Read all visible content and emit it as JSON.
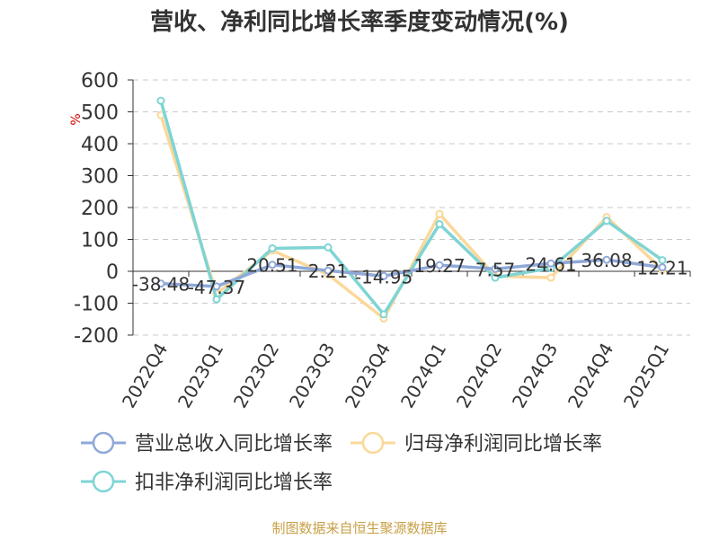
{
  "chart_data": {
    "type": "line",
    "title": "营收、净利同比增长率季度变动情况(%)",
    "ylabel": "%",
    "xlabel": "",
    "categories": [
      "2022Q4",
      "2023Q1",
      "2023Q2",
      "2023Q3",
      "2023Q4",
      "2024Q1",
      "2024Q2",
      "2024Q3",
      "2024Q4",
      "2025Q1"
    ],
    "ylim": [
      -200,
      600
    ],
    "yticks": [
      "600",
      "500",
      "400",
      "300",
      "200",
      "100",
      "0",
      "-100",
      "-200"
    ],
    "ytick_values": [
      600,
      500,
      400,
      300,
      200,
      100,
      0,
      -100,
      -200
    ],
    "grid": true,
    "legend_position": "bottom",
    "series": [
      {
        "name": "营业总收入同比增长率",
        "color": "#8fa8d8",
        "values": [
          -38.48,
          -47.37,
          20.51,
          2.21,
          -14.95,
          19.27,
          7.57,
          24.61,
          36.08,
          12.21
        ],
        "labels": [
          "-38.48",
          "-47.37",
          "20.51",
          "2.21",
          "-14.95",
          "19.27",
          "7.57",
          "24.61",
          "36.08",
          "12.21"
        ]
      },
      {
        "name": "归母净利润同比增长率",
        "color": "#fbd89a",
        "values": [
          490,
          -70,
          65,
          -10,
          -148,
          180,
          -15,
          -20,
          170,
          5
        ]
      },
      {
        "name": "扣非净利润同比增长率",
        "color": "#7fd4d4",
        "values": [
          535,
          -88,
          72,
          75,
          -135,
          148,
          -20,
          10,
          158,
          35
        ]
      }
    ]
  },
  "source": "制图数据来自恒生聚源数据库"
}
